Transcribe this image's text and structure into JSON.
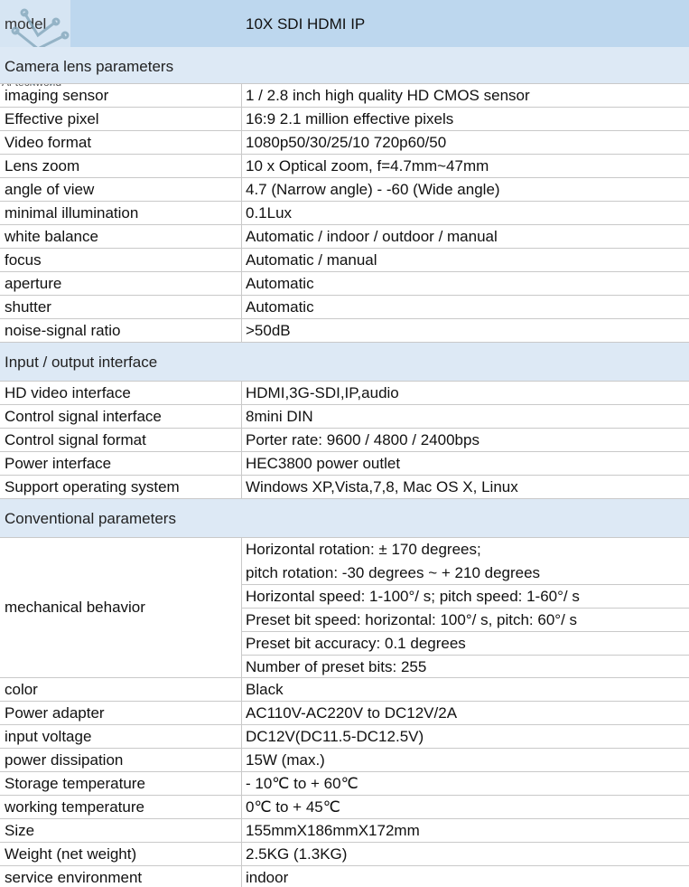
{
  "watermark": {
    "text": "Ai-techworld",
    "icon": "circuit-logo-icon"
  },
  "model": {
    "label": "model",
    "value": "10X SDI HDMI IP"
  },
  "sections": [
    {
      "title": "Camera lens parameters",
      "rows": [
        {
          "label": "imaging sensor",
          "value": "1 / 2.8 inch high quality HD CMOS sensor"
        },
        {
          "label": "Effective pixel",
          "value": "16:9   2.1 million effective pixels"
        },
        {
          "label": "Video format",
          "value": "1080p50/30/25/10     720p60/50"
        },
        {
          "label": "Lens zoom",
          "value": "10 x Optical zoom, f=4.7mm~47mm"
        },
        {
          "label": "angle of view",
          "value": "4.7 (Narrow angle) - -60 (Wide angle)"
        },
        {
          "label": "minimal illumination",
          "value": "0.1Lux"
        },
        {
          "label": "white balance",
          "value": "Automatic / indoor / outdoor / manual"
        },
        {
          "label": "focus",
          "value": "Automatic / manual"
        },
        {
          "label": "aperture",
          "value": "Automatic"
        },
        {
          "label": "shutter",
          "value": "Automatic"
        },
        {
          "label": "noise-signal ratio",
          "value": ">50dB"
        }
      ]
    },
    {
      "title": "Input / output interface",
      "rows": [
        {
          "label": "HD video interface",
          "value": "HDMI,3G-SDI,IP,audio"
        },
        {
          "label": "Control signal interface",
          "value": "8mini DIN"
        },
        {
          "label": "Control signal format",
          "value": "Porter rate: 9600 / 4800 / 2400bps"
        },
        {
          "label": "Power interface",
          "value": "HEC3800 power outlet"
        },
        {
          "label": "Support operating system",
          "value": "Windows XP,Vista,7,8, Mac OS X, Linux"
        }
      ]
    },
    {
      "title": "Conventional parameters",
      "rows": [
        {
          "label": "mechanical behavior",
          "values": [
            "Horizontal rotation: ± 170 degrees;",
            "pitch rotation: -30 degrees ~ + 210 degrees",
            "Horizontal speed: 1-100°/ s; pitch speed: 1-60°/ s",
            "Preset bit speed: horizontal: 100°/ s, pitch: 60°/ s",
            "Preset bit accuracy: 0.1 degrees",
            "Number of preset bits: 255"
          ]
        },
        {
          "label": "color",
          "value": "Black"
        },
        {
          "label": "Power adapter",
          "value": "AC110V-AC220V to DC12V/2A"
        },
        {
          "label": "input voltage",
          "value": "DC12V(DC11.5-DC12.5V)"
        },
        {
          "label": "power dissipation",
          "value": "15W (max.)"
        },
        {
          "label": "Storage temperature",
          "value": " - 10℃ to + 60℃"
        },
        {
          "label": "working temperature",
          "value": "0℃ to + 45℃"
        },
        {
          "label": "Size",
          "value": "155mmX186mmX172mm"
        },
        {
          "label": "Weight (net weight)",
          "value": "2.5KG (1.3KG)"
        },
        {
          "label": "service environment",
          "value": "indoor"
        }
      ]
    }
  ]
}
